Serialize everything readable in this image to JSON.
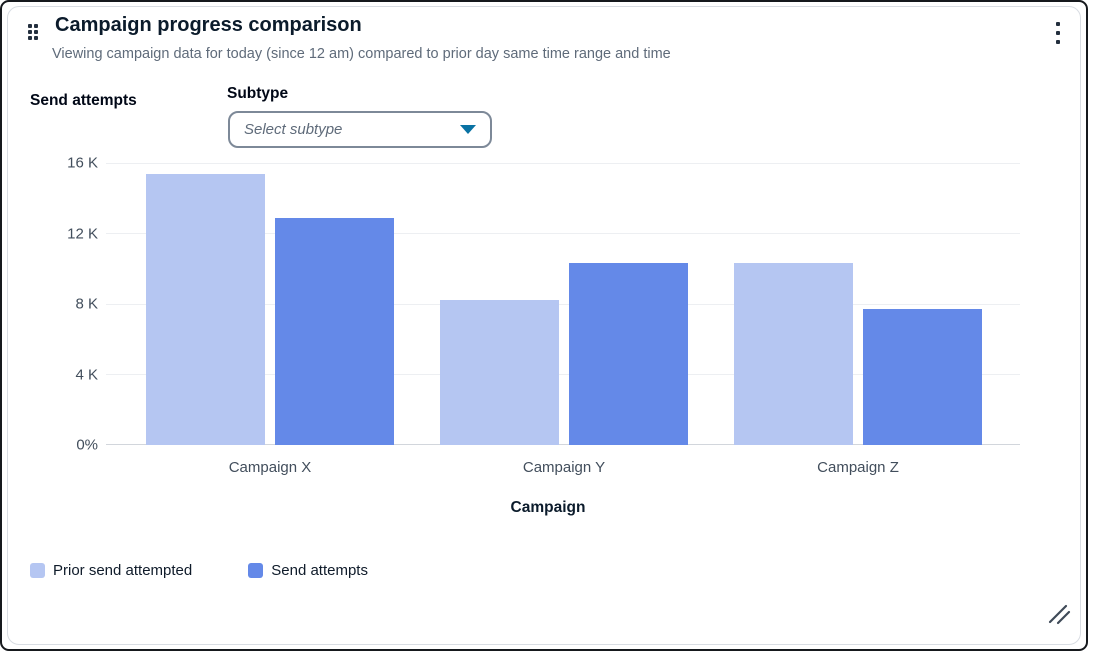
{
  "widget": {
    "title": "Campaign progress comparison",
    "subtitle": "Viewing campaign data for today (since 12 am) compared to prior day same time range and time",
    "y_axis_heading": "Send attempts",
    "subtype_label": "Subtype",
    "subtype_placeholder": "Select subtype"
  },
  "icons": {
    "drag_handle_icon": "six-dot drag grid",
    "menu_icon": "vertical ellipsis ⋮",
    "caret_down_icon": "▼ filled triangle",
    "resize_icon": "double diagonal grip //"
  },
  "colors": {
    "prior_series": "#b5c6f2",
    "send_series": "#6489e8",
    "caret": "#0972a3",
    "title_text": "#0b1b2b",
    "muted_text": "#5f6b7a",
    "axis_text": "#424e5c",
    "gridline": "#edeff2",
    "baseline": "#d2d6dc",
    "dropdown_border": "#7d8998"
  },
  "chart_data": {
    "type": "bar",
    "title": "Campaign progress comparison",
    "xlabel": "Campaign",
    "ylabel": "Send attempts",
    "categories": [
      "Campaign X",
      "Campaign Y",
      "Campaign Z"
    ],
    "series": [
      {
        "name": "Prior send attempted",
        "color": "#b5c6f2",
        "values": [
          15400,
          8200,
          10300
        ]
      },
      {
        "name": "Send attempts",
        "color": "#6489e8",
        "values": [
          12900,
          10300,
          7700
        ]
      }
    ],
    "ylim": [
      0,
      16000
    ],
    "y_ticks": [
      {
        "value": 0,
        "label": "0%"
      },
      {
        "value": 4000,
        "label": "4 K"
      },
      {
        "value": 8000,
        "label": "8 K"
      },
      {
        "value": 12000,
        "label": "12 K"
      },
      {
        "value": 16000,
        "label": "16 K"
      }
    ],
    "grid": true,
    "legend_position": "bottom-left"
  }
}
